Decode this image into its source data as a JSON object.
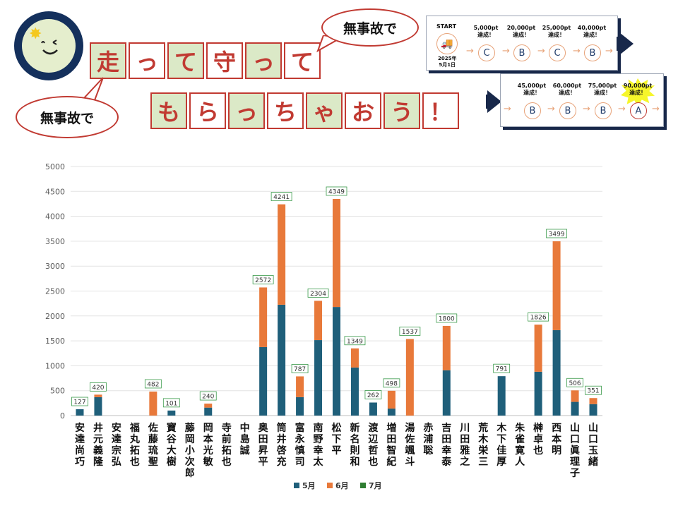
{
  "banner": {
    "line1": [
      "走",
      "っ",
      "て",
      "守",
      "っ",
      "て"
    ],
    "line2": [
      "も",
      "ら",
      "っ",
      "ち",
      "ゃ",
      "お",
      "う",
      "！"
    ],
    "bubble_top": "無事故で",
    "bubble_left": "無事故で"
  },
  "steps_top": {
    "start_label": "START",
    "start_date": [
      "2025年",
      "5月1日"
    ],
    "items": [
      {
        "pt": "5,000pt",
        "sub": "達成！",
        "grade": "C"
      },
      {
        "pt": "20,000pt",
        "sub": "達成！",
        "grade": "B"
      },
      {
        "pt": "25,000pt",
        "sub": "達成！",
        "grade": "C"
      },
      {
        "pt": "40,000pt",
        "sub": "達成！",
        "grade": "B"
      }
    ]
  },
  "steps_bottom": {
    "items": [
      {
        "pt": "45,000pt",
        "sub": "達成！",
        "grade": "B"
      },
      {
        "pt": "60,000pt",
        "sub": "達成！",
        "grade": "B"
      },
      {
        "pt": "75,000pt",
        "sub": "達成！",
        "grade": "B"
      },
      {
        "pt": "90,000pt",
        "sub": "達成！",
        "grade": "A"
      }
    ]
  },
  "chart_data": {
    "type": "bar",
    "stacked": true,
    "categories": [
      "安達尚巧",
      "井元義隆",
      "安達宗弘",
      "福丸拓也",
      "佐藤琉聖",
      "寶谷大樹",
      "藤岡小次郎",
      "岡本光敏",
      "寺前拓也",
      "中島誠",
      "奥田昇平",
      "筒井啓充",
      "富永慎司",
      "南野幸太",
      "松下平",
      "新名則和",
      "渡辺哲也",
      "増田智紀",
      "湯佐颯斗",
      "赤浦聡",
      "吉田幸泰",
      "川田雅之",
      "荒木栄三",
      "木下佳厚",
      "朱雀寛人",
      "榊卓也",
      "西本明",
      "山口眞理子",
      "山口玉緒"
    ],
    "series": [
      {
        "name": "5月",
        "color": "#1f5f7a",
        "values": [
          127,
          370,
          0,
          0,
          0,
          101,
          0,
          160,
          0,
          0,
          1375,
          2225,
          370,
          1515,
          2180,
          965,
          262,
          140,
          0,
          0,
          910,
          0,
          0,
          791,
          0,
          880,
          1715,
          275,
          230
        ]
      },
      {
        "name": "6月",
        "color": "#e8793a",
        "values": [
          0,
          50,
          0,
          0,
          482,
          0,
          0,
          80,
          0,
          0,
          1197,
          2016,
          417,
          789,
          2169,
          384,
          0,
          358,
          1537,
          0,
          890,
          0,
          0,
          0,
          0,
          946,
          1784,
          231,
          121
        ]
      },
      {
        "name": "7月",
        "color": "#2e7d32",
        "values": [
          0,
          0,
          0,
          0,
          0,
          0,
          0,
          0,
          0,
          0,
          0,
          0,
          0,
          0,
          0,
          0,
          0,
          0,
          0,
          0,
          0,
          0,
          0,
          0,
          0,
          0,
          0,
          0,
          0
        ]
      }
    ],
    "totals": [
      127,
      420,
      null,
      null,
      482,
      101,
      null,
      240,
      null,
      null,
      2572,
      4241,
      787,
      2304,
      4349,
      1349,
      262,
      498,
      1537,
      null,
      1800,
      null,
      null,
      791,
      null,
      1826,
      3499,
      506,
      351
    ],
    "yticks": [
      0,
      500,
      1000,
      1500,
      2000,
      2500,
      3000,
      3500,
      4000,
      4500,
      5000
    ],
    "ylim": [
      0,
      5000
    ],
    "grid": true,
    "legend": "bottom"
  }
}
